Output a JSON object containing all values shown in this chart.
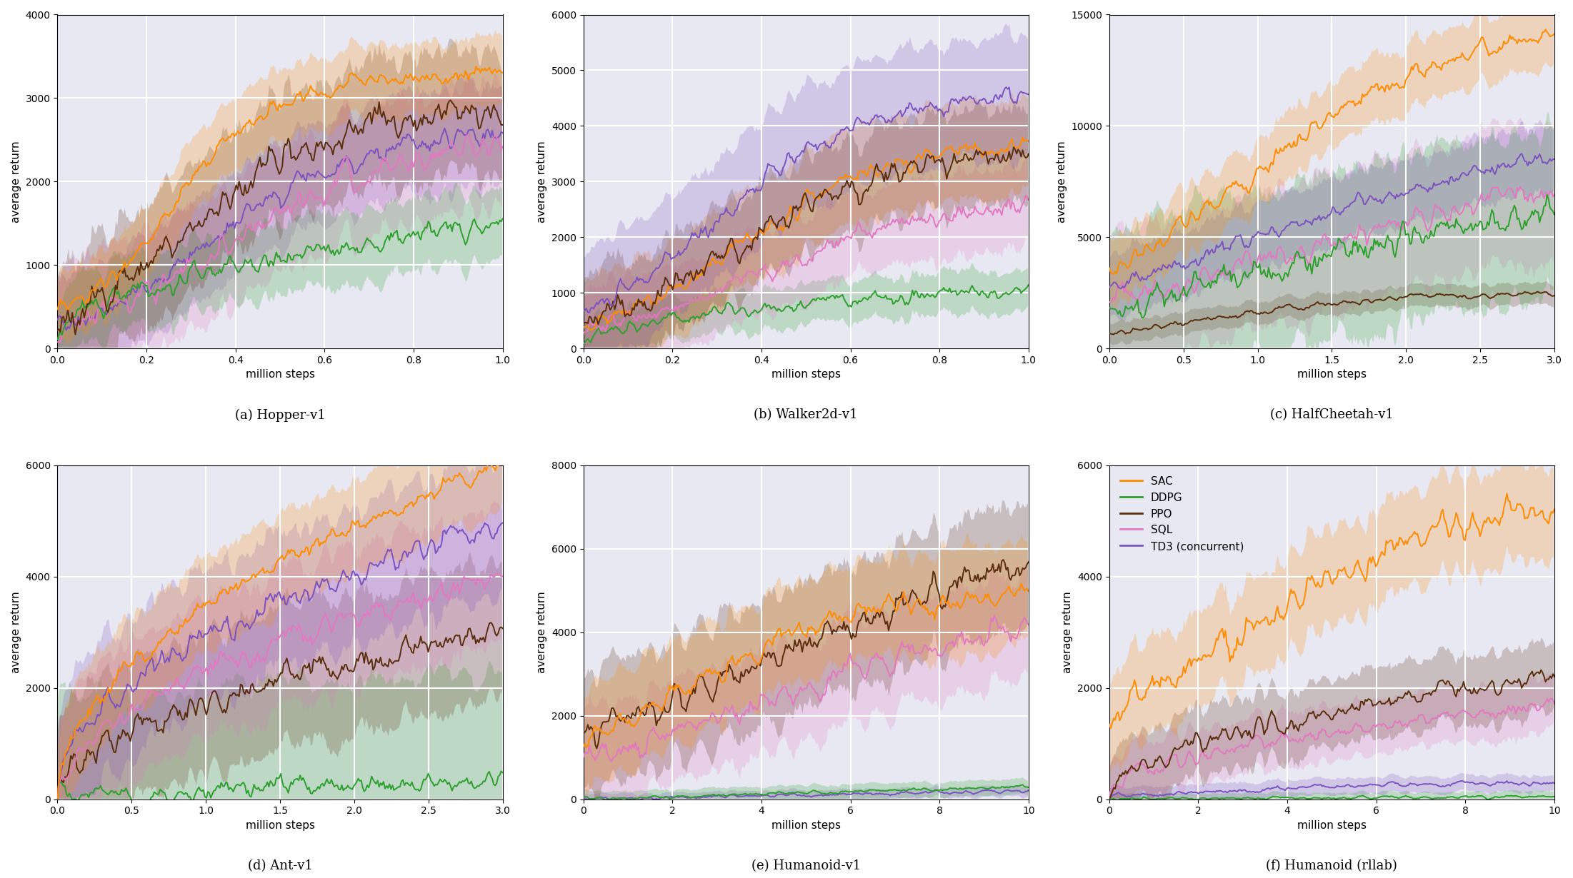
{
  "panels": [
    {
      "title": "(a) Hopper-v1",
      "xlabel": "million steps",
      "ylabel": "average return",
      "xlim": [
        0,
        1.0
      ],
      "ylim": [
        0,
        4000
      ],
      "xticks": [
        0.0,
        0.2,
        0.4,
        0.6,
        0.8,
        1.0
      ],
      "yticks": [
        0,
        1000,
        2000,
        3000,
        4000
      ]
    },
    {
      "title": "(b) Walker2d-v1",
      "xlabel": "million steps",
      "ylabel": "average return",
      "xlim": [
        0,
        1.0
      ],
      "ylim": [
        0,
        6000
      ],
      "xticks": [
        0.0,
        0.2,
        0.4,
        0.6,
        0.8,
        1.0
      ],
      "yticks": [
        0,
        1000,
        2000,
        3000,
        4000,
        5000,
        6000
      ]
    },
    {
      "title": "(c) HalfCheetah-v1",
      "xlabel": "million steps",
      "ylabel": "average return",
      "xlim": [
        0,
        3.0
      ],
      "ylim": [
        0,
        15000
      ],
      "xticks": [
        0.0,
        0.5,
        1.0,
        1.5,
        2.0,
        2.5,
        3.0
      ],
      "yticks": [
        0,
        5000,
        10000,
        15000
      ]
    },
    {
      "title": "(d) Ant-v1",
      "xlabel": "million steps",
      "ylabel": "average return",
      "xlim": [
        0,
        3.0
      ],
      "ylim": [
        0,
        6000
      ],
      "xticks": [
        0.0,
        0.5,
        1.0,
        1.5,
        2.0,
        2.5,
        3.0
      ],
      "yticks": [
        0,
        2000,
        4000,
        6000
      ]
    },
    {
      "title": "(e) Humanoid-v1",
      "xlabel": "million steps",
      "ylabel": "average return",
      "xlim": [
        0,
        10
      ],
      "ylim": [
        0,
        8000
      ],
      "xticks": [
        0,
        2,
        4,
        6,
        8,
        10
      ],
      "yticks": [
        0,
        2000,
        4000,
        6000,
        8000
      ]
    },
    {
      "title": "(f) Humanoid (rllab)",
      "xlabel": "million steps",
      "ylabel": "average return",
      "xlim": [
        0,
        10
      ],
      "ylim": [
        0,
        6000
      ],
      "xticks": [
        0,
        2,
        4,
        6,
        8,
        10
      ],
      "yticks": [
        0,
        2000,
        4000,
        6000
      ]
    }
  ],
  "algorithms": [
    "SAC",
    "DDPG",
    "PPO",
    "SQL",
    "TD3 (concurrent)"
  ],
  "colors": {
    "SAC": "#ff8c00",
    "DDPG": "#2ca02c",
    "PPO": "#5a2d0c",
    "SQL": "#e377c2",
    "TD3 (concurrent)": "#7b52c0"
  },
  "bg_color": "#e8e8f2",
  "grid_color": "white",
  "alpha_fill": 0.22,
  "seed": 42
}
